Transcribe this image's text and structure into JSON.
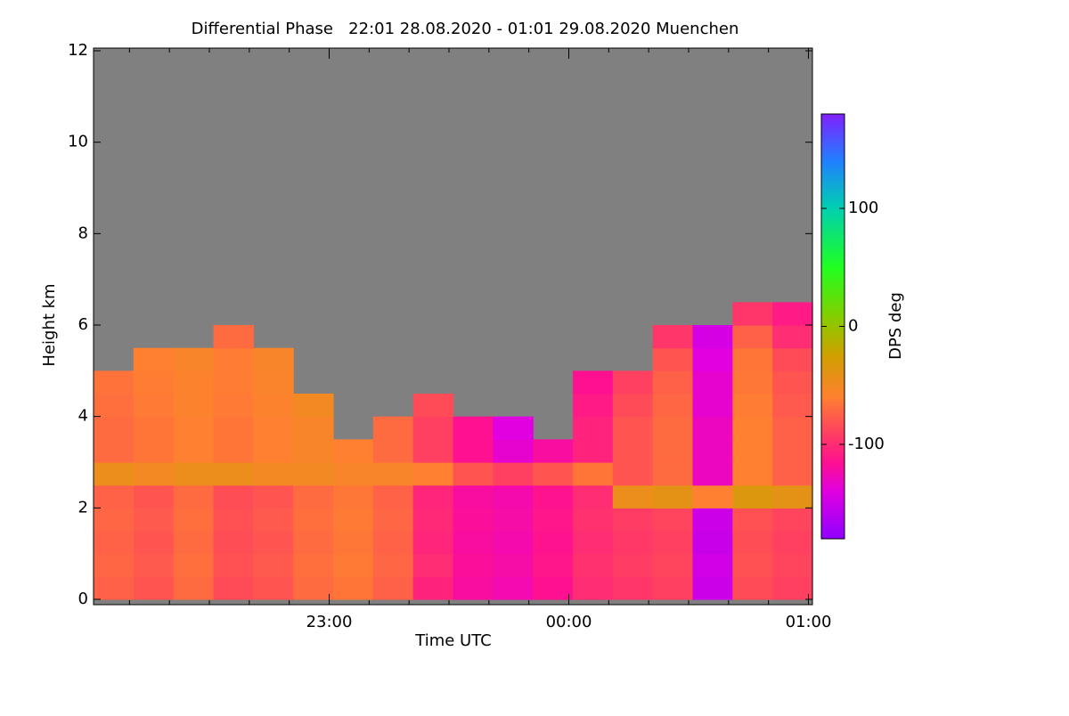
{
  "chart_data": {
    "type": "heatmap",
    "title": "Differential Phase   22:01 28.08.2020 - 01:01 29.08.2020 Muenchen",
    "xlabel": "Time UTC",
    "ylabel": "Height km",
    "colorbar_label": "DPS deg",
    "xlim": [
      22.0167,
      25.0167
    ],
    "xticks": [
      {
        "value": 23,
        "label": "23:00"
      },
      {
        "value": 24,
        "label": "00:00"
      },
      {
        "value": 25,
        "label": "01:00"
      }
    ],
    "xminorticks": [
      22.1667,
      22.3333,
      22.5,
      22.6667,
      22.8333,
      23.1667,
      23.3333,
      23.5,
      23.6667,
      23.8333,
      24.1667,
      24.3333,
      24.5,
      24.6667,
      24.8333
    ],
    "ylim": [
      0,
      12
    ],
    "yticks": [
      0,
      2,
      4,
      6,
      8,
      10,
      12
    ],
    "clim": [
      -180,
      180
    ],
    "cticks": [
      -100,
      0,
      100
    ],
    "nodata_color": "#808080",
    "colorscale": [
      [
        -180,
        "#9000ff"
      ],
      [
        -140,
        "#e000e0"
      ],
      [
        -115,
        "#ff1090"
      ],
      [
        -90,
        "#ff4060"
      ],
      [
        -60,
        "#ff8030"
      ],
      [
        -25,
        "#d0a000"
      ],
      [
        10,
        "#80d000"
      ],
      [
        50,
        "#20ff20"
      ],
      [
        100,
        "#00d0b0"
      ],
      [
        140,
        "#2080ff"
      ],
      [
        180,
        "#8020ff"
      ]
    ],
    "x": [
      22.1,
      22.2667,
      22.4333,
      22.6,
      22.7667,
      22.9333,
      23.1,
      23.2667,
      23.4333,
      23.6,
      23.7667,
      23.9333,
      24.1,
      24.2667,
      24.4333,
      24.6,
      24.7667,
      24.9333
    ],
    "y": [
      0.25,
      0.75,
      1.25,
      1.75,
      2.25,
      2.75,
      3.25,
      3.75,
      4.25,
      4.75,
      5.25,
      5.75,
      6.25
    ],
    "z": [
      [
        -75,
        -80,
        -70,
        -85,
        -80,
        -70,
        -65,
        -75,
        -105,
        -120,
        -125,
        -115,
        -100,
        -95,
        -90,
        -150,
        -85,
        -90
      ],
      [
        -72,
        -78,
        -68,
        -82,
        -78,
        -68,
        -63,
        -72,
        -100,
        -118,
        -122,
        -112,
        -98,
        -92,
        -88,
        -148,
        -82,
        -88
      ],
      [
        -74,
        -80,
        -70,
        -84,
        -80,
        -70,
        -64,
        -74,
        -104,
        -120,
        -124,
        -114,
        -100,
        -94,
        -90,
        -152,
        -84,
        -90
      ],
      [
        -72,
        -78,
        -68,
        -82,
        -78,
        -68,
        -63,
        -72,
        -102,
        -118,
        -122,
        -112,
        -98,
        -92,
        -88,
        -150,
        -82,
        -88
      ],
      [
        -74,
        -80,
        -70,
        -84,
        -80,
        -70,
        -64,
        -74,
        -104,
        -120,
        -124,
        -114,
        -100,
        -45,
        -40,
        -60,
        -35,
        -40
      ],
      [
        -45,
        -50,
        -45,
        -45,
        -50,
        -50,
        -55,
        -55,
        -60,
        -80,
        -90,
        -80,
        -65,
        -80,
        -70,
        -130,
        -60,
        -75
      ],
      [
        -70,
        -65,
        -60,
        -65,
        -60,
        -55,
        -60,
        -70,
        -90,
        -115,
        -135,
        -120,
        -105,
        -80,
        -70,
        -130,
        -60,
        -75
      ],
      [
        -70,
        -65,
        -60,
        -65,
        -60,
        -55,
        null,
        -70,
        -90,
        -115,
        -140,
        null,
        -105,
        -80,
        -70,
        -130,
        -60,
        -75
      ],
      [
        -68,
        -63,
        -58,
        -63,
        -58,
        -50,
        null,
        null,
        -85,
        null,
        null,
        null,
        -110,
        -85,
        -72,
        -135,
        -62,
        -78
      ],
      [
        -66,
        -62,
        -58,
        -62,
        -56,
        null,
        null,
        null,
        null,
        null,
        null,
        null,
        -115,
        -90,
        -75,
        -135,
        -64,
        -80
      ],
      [
        null,
        -60,
        -55,
        -62,
        -55,
        null,
        null,
        null,
        null,
        null,
        null,
        null,
        null,
        null,
        -80,
        -140,
        -65,
        -85
      ],
      [
        null,
        null,
        null,
        -70,
        null,
        null,
        null,
        null,
        null,
        null,
        null,
        null,
        null,
        null,
        -95,
        -145,
        -75,
        -100
      ],
      [
        null,
        null,
        null,
        null,
        null,
        null,
        null,
        null,
        null,
        null,
        null,
        null,
        null,
        null,
        null,
        null,
        -95,
        -110
      ]
    ]
  }
}
